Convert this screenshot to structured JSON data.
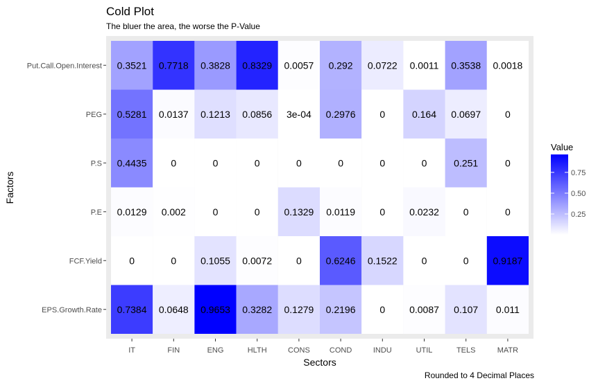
{
  "chart_data": {
    "type": "heatmap",
    "title": "Cold Plot",
    "subtitle": "The bluer the area, the worse the P-Value",
    "xlabel": "Sectors",
    "ylabel": "Factors",
    "caption": "Rounded to 4 Decimal Places",
    "x_categories": [
      "IT",
      "FIN",
      "ENG",
      "HLTH",
      "CONS",
      "COND",
      "INDU",
      "UTIL",
      "TELS",
      "MATR"
    ],
    "y_categories": [
      "Put.Call.Open.Interest",
      "PEG",
      "P.S",
      "P.E",
      "FCF.Yield",
      "EPS.Growth.Rate"
    ],
    "values": [
      [
        0.3521,
        0.7718,
        0.3828,
        0.8329,
        0.0057,
        0.292,
        0.0722,
        0.0011,
        0.3538,
        0.0018
      ],
      [
        0.5281,
        0.0137,
        0.1213,
        0.0856,
        0.0003,
        0.2976,
        0,
        0.164,
        0.0697,
        0
      ],
      [
        0.4435,
        0,
        0,
        0,
        0,
        0,
        0,
        0,
        0.251,
        0
      ],
      [
        0.0129,
        0.002,
        0,
        0,
        0.1329,
        0.0119,
        0,
        0.0232,
        0,
        0
      ],
      [
        0,
        0,
        0.1055,
        0.0072,
        0,
        0.6246,
        0.1522,
        0,
        0,
        0.9187
      ],
      [
        0.7384,
        0.0648,
        0.9653,
        0.3282,
        0.1279,
        0.2196,
        0,
        0.0087,
        0.107,
        0.011
      ]
    ],
    "cell_labels": [
      [
        "0.3521",
        "0.7718",
        "0.3828",
        "0.8329",
        "0.0057",
        "0.292",
        "0.0722",
        "0.0011",
        "0.3538",
        "0.0018"
      ],
      [
        "0.5281",
        "0.0137",
        "0.1213",
        "0.0856",
        "3e-04",
        "0.2976",
        "0",
        "0.164",
        "0.0697",
        "0"
      ],
      [
        "0.4435",
        "0",
        "0",
        "0",
        "0",
        "0",
        "0",
        "0",
        "0.251",
        "0"
      ],
      [
        "0.0129",
        "0.002",
        "0",
        "0",
        "0.1329",
        "0.0119",
        "0",
        "0.0232",
        "0",
        "0"
      ],
      [
        "0",
        "0",
        "0.1055",
        "0.0072",
        "0",
        "0.6246",
        "0.1522",
        "0",
        "0",
        "0.9187"
      ],
      [
        "0.7384",
        "0.0648",
        "0.9653",
        "0.3282",
        "0.1279",
        "0.2196",
        "0",
        "0.0087",
        "0.107",
        "0.011"
      ]
    ],
    "color_scale": {
      "low": "#ffffff",
      "high": "#0000ff",
      "min": 0,
      "max": 0.9653
    },
    "legend": {
      "title": "Value",
      "placement": "right",
      "ticks": [
        0.25,
        0.5,
        0.75
      ],
      "tick_labels": [
        "0.25",
        "0.50",
        "0.75"
      ]
    },
    "background": "#ebebeb",
    "grid": false
  }
}
